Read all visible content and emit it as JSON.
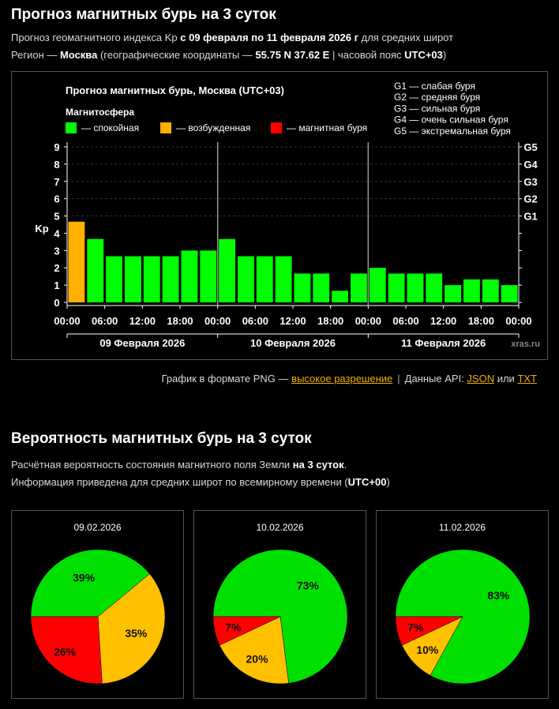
{
  "header": {
    "title": "Прогноз магнитных бурь на 3 суток",
    "line1": {
      "prefix": "Прогноз геомагнитного индекса Kp ",
      "dates": "с 09 февраля по 11 февраля 2026 г",
      "suffix": " для средних широт"
    },
    "line2": {
      "prefix": "Регион — ",
      "region": "Москва",
      "mid": " (географические координаты — ",
      "coords": "55.75 N 37.62 E",
      "mid2": " | часовой пояс ",
      "tz": "UTC+03",
      "suffix": ")"
    }
  },
  "chart_data": {
    "type": "bar",
    "title": "Прогноз магнитных бурь, Москва (UTC+03)",
    "legend_title": "Магнитосфера",
    "legend": [
      {
        "label": "— спокойная",
        "color": "#00ff00"
      },
      {
        "label": "— возбужденная",
        "color": "#ffb000"
      },
      {
        "label": "— магнитная буря",
        "color": "#ff0000"
      }
    ],
    "g_legend": [
      "G1 — слабая буря",
      "G2 — средняя буря",
      "G3 — сильная буря",
      "G4 — очень сильная буря",
      "G5 — экстремальная буря"
    ],
    "ylabel": "Kp",
    "ylim": [
      0,
      9
    ],
    "y_ticks": [
      "0",
      "1",
      "2",
      "3",
      "4",
      "5",
      "6",
      "7",
      "8",
      "9"
    ],
    "g_ticks": [
      {
        "kp": 5,
        "label": "G1"
      },
      {
        "kp": 6,
        "label": "G2"
      },
      {
        "kp": 7,
        "label": "G3"
      },
      {
        "kp": 8,
        "label": "G4"
      },
      {
        "kp": 9,
        "label": "G5"
      }
    ],
    "x_ticks": [
      "00:00",
      "06:00",
      "12:00",
      "18:00",
      "00:00",
      "06:00",
      "12:00",
      "18:00",
      "00:00",
      "06:00",
      "12:00",
      "18:00",
      "00:00"
    ],
    "days": [
      "09 Февраля 2026",
      "10 Февраля 2026",
      "11 Февраля 2026"
    ],
    "values": [
      4.67,
      3.67,
      2.67,
      2.67,
      2.67,
      2.67,
      3.0,
      3.0,
      3.67,
      2.67,
      2.67,
      2.67,
      1.67,
      1.67,
      0.67,
      1.67,
      2.0,
      1.67,
      1.67,
      1.67,
      1.0,
      1.33,
      1.33,
      1.0
    ],
    "colors": [
      "#ffb000",
      "#00ff00",
      "#00ff00",
      "#00ff00",
      "#00ff00",
      "#00ff00",
      "#00ff00",
      "#00ff00",
      "#00ff00",
      "#00ff00",
      "#00ff00",
      "#00ff00",
      "#00ff00",
      "#00ff00",
      "#00ff00",
      "#00ff00",
      "#00ff00",
      "#00ff00",
      "#00ff00",
      "#00ff00",
      "#00ff00",
      "#00ff00",
      "#00ff00",
      "#00ff00"
    ],
    "watermark": "xras.ru"
  },
  "links": {
    "png_prefix": "График в формате PNG — ",
    "png_link": "высокое разрешение",
    "api_prefix": "Данные API: ",
    "json": "JSON",
    "or": " или ",
    "txt": "TXT"
  },
  "prob": {
    "title": "Вероятность магнитных бурь на 3 суток",
    "line1": {
      "prefix": "Расчётная вероятность состояния магнитного поля Земли ",
      "bold": "на 3 суток",
      "suffix": "."
    },
    "line2": {
      "prefix": "Информация приведена для средних широт по всемирному времени (",
      "bold": "UTC+00",
      "suffix": ")"
    },
    "pies": [
      {
        "date": "09.02.2026",
        "slices": [
          {
            "value": 39,
            "label": "39%",
            "color": "#00e000"
          },
          {
            "value": 35,
            "label": "35%",
            "color": "#ffc000"
          },
          {
            "value": 26,
            "label": "26%",
            "color": "#ff0000"
          }
        ]
      },
      {
        "date": "10.02.2026",
        "slices": [
          {
            "value": 73,
            "label": "73%",
            "color": "#00e000"
          },
          {
            "value": 20,
            "label": "20%",
            "color": "#ffc000"
          },
          {
            "value": 7,
            "label": "7%",
            "color": "#ff0000"
          }
        ]
      },
      {
        "date": "11.02.2026",
        "slices": [
          {
            "value": 83,
            "label": "83%",
            "color": "#00e000"
          },
          {
            "value": 10,
            "label": "10%",
            "color": "#ffc000"
          },
          {
            "value": 7,
            "label": "7%",
            "color": "#ff0000"
          }
        ]
      }
    ]
  }
}
